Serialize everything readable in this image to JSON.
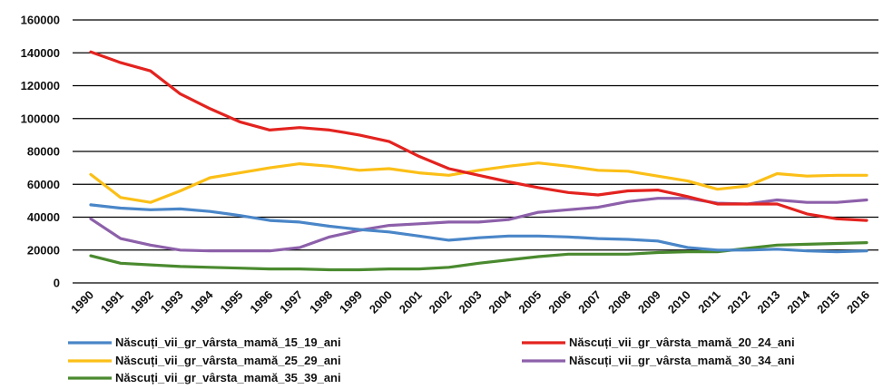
{
  "chart_data": {
    "type": "line",
    "title": "",
    "xlabel": "",
    "ylabel": "",
    "ylim": [
      0,
      160000
    ],
    "yticks": [
      "0",
      "20000",
      "40000",
      "60000",
      "80000",
      "100000",
      "120000",
      "140000",
      "160000"
    ],
    "grid": "horizontal",
    "legend_position": "bottom",
    "x": [
      "1990",
      "1991",
      "1992",
      "1993",
      "1994",
      "1995",
      "1996",
      "1997",
      "1998",
      "1999",
      "2000",
      "2001",
      "2002",
      "2003",
      "2004",
      "2005",
      "2006",
      "2007",
      "2008",
      "2009",
      "2010",
      "2011",
      "2012",
      "2013",
      "2014",
      "2015",
      "2016"
    ],
    "series": [
      {
        "name": "Născuți_vii_gr_vârsta_mamă_15_19_ani",
        "color": "#4a86c8",
        "values": [
          47500,
          45500,
          44500,
          45000,
          43500,
          41000,
          38000,
          37000,
          34500,
          32500,
          31000,
          28500,
          26000,
          27500,
          28500,
          28500,
          28000,
          27000,
          26500,
          25500,
          21500,
          20000,
          20000,
          20500,
          19500,
          19000,
          19500
        ]
      },
      {
        "name": "Născuți_vii_gr_vârsta_mamă_20_24_ani",
        "color": "#e3231f",
        "values": [
          140500,
          134000,
          129000,
          115000,
          106000,
          98000,
          93000,
          94500,
          93000,
          90000,
          86000,
          77000,
          69500,
          65500,
          61500,
          58000,
          55000,
          53500,
          56000,
          56500,
          52500,
          48000,
          48000,
          48000,
          42000,
          39000,
          38000
        ]
      },
      {
        "name": "Născuți_vii_gr_vârsta_mamă_25_29_ani",
        "color": "#fbbf17",
        "values": [
          66000,
          52000,
          49000,
          56000,
          64000,
          67000,
          70000,
          72500,
          71000,
          68500,
          69500,
          67000,
          65500,
          68500,
          71000,
          73000,
          71000,
          68500,
          68000,
          65000,
          62000,
          57000,
          59000,
          66500,
          65000,
          65500,
          65500
        ]
      },
      {
        "name": "Născuți_vii_gr_vârsta_mamă_30_34_ani",
        "color": "#8d60aa",
        "values": [
          39000,
          27000,
          23000,
          20000,
          19500,
          19500,
          19500,
          21500,
          28000,
          32000,
          35000,
          36000,
          37000,
          37000,
          38500,
          43000,
          44500,
          46000,
          49500,
          51500,
          51500,
          48500,
          48000,
          50500,
          49000,
          49000,
          50500
        ]
      },
      {
        "name": "Născuți_vii_gr_vârsta_mamă_35_39_ani",
        "color": "#4a8a2f",
        "values": [
          16500,
          12000,
          11000,
          10000,
          9500,
          9000,
          8500,
          8500,
          8000,
          8000,
          8500,
          8500,
          9500,
          12000,
          14000,
          16000,
          17500,
          17500,
          17500,
          18500,
          19000,
          19000,
          21000,
          23000,
          23500,
          24000,
          24500
        ]
      }
    ]
  }
}
